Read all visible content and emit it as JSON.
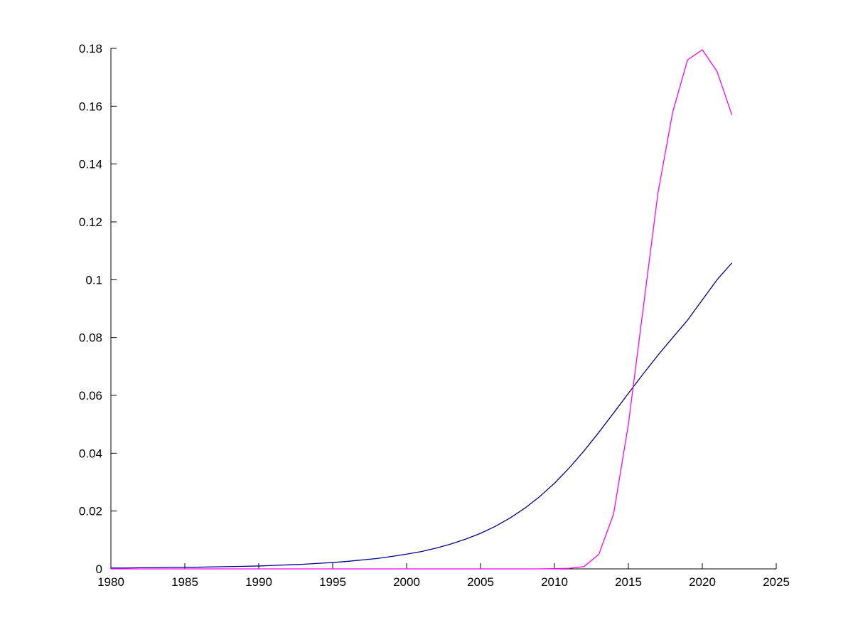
{
  "figure": {
    "background": "#ffffff",
    "axis_color": "#000000"
  },
  "chart_data": {
    "type": "line",
    "title": "",
    "xlabel": "",
    "ylabel": "",
    "grid": false,
    "legend": null,
    "xlim": [
      1980,
      2025
    ],
    "ylim": [
      0,
      0.18
    ],
    "xticks": [
      1980,
      1985,
      1990,
      1995,
      2000,
      2005,
      2010,
      2015,
      2020,
      2025
    ],
    "xtick_labels": [
      "1980",
      "1985",
      "1990",
      "1995",
      "2000",
      "2005",
      "2010",
      "2015",
      "2020",
      "2025"
    ],
    "yticks": [
      0,
      0.02,
      0.04,
      0.06,
      0.08,
      0.1,
      0.12,
      0.14,
      0.16,
      0.18
    ],
    "ytick_labels": [
      "0",
      "0.02",
      "0.04",
      "0.06",
      "0.08",
      "0.1",
      "0.12",
      "0.14",
      "0.16",
      "0.18"
    ],
    "x": [
      1980,
      1981,
      1982,
      1983,
      1984,
      1985,
      1986,
      1987,
      1988,
      1989,
      1990,
      1991,
      1992,
      1993,
      1994,
      1995,
      1996,
      1997,
      1998,
      1999,
      2000,
      2001,
      2002,
      2003,
      2004,
      2005,
      2006,
      2007,
      2008,
      2009,
      2010,
      2011,
      2012,
      2013,
      2014,
      2015,
      2016,
      2017,
      2018,
      2019,
      2020,
      2021,
      2022
    ],
    "series": [
      {
        "name": "blue",
        "color": "#00008b",
        "width": 1.3,
        "values": [
          0.0003,
          0.0003,
          0.0004,
          0.0004,
          0.0005,
          0.0005,
          0.0006,
          0.0007,
          0.0008,
          0.0009,
          0.001,
          0.0012,
          0.0014,
          0.0016,
          0.0019,
          0.0022,
          0.0026,
          0.0031,
          0.0036,
          0.0043,
          0.0051,
          0.006,
          0.0072,
          0.0086,
          0.0103,
          0.0123,
          0.0147,
          0.0176,
          0.021,
          0.025,
          0.0296,
          0.0349,
          0.0408,
          0.0472,
          0.0539,
          0.0607,
          0.0674,
          0.0739,
          0.08,
          0.086,
          0.093,
          0.1,
          0.1058
        ]
      },
      {
        "name": "magenta",
        "color": "#ff00ff",
        "width": 1.3,
        "values": [
          0,
          0,
          0,
          0,
          0,
          0,
          0,
          0,
          0,
          0,
          0,
          0,
          0,
          0,
          0,
          0,
          0,
          0,
          0,
          0,
          0,
          0,
          0,
          0,
          0,
          0,
          0,
          0,
          0,
          0,
          0.0001,
          0.0002,
          0.0008,
          0.005,
          0.019,
          0.05,
          0.09,
          0.13,
          0.158,
          0.176,
          0.1795,
          0.172,
          0.157
        ]
      }
    ]
  }
}
